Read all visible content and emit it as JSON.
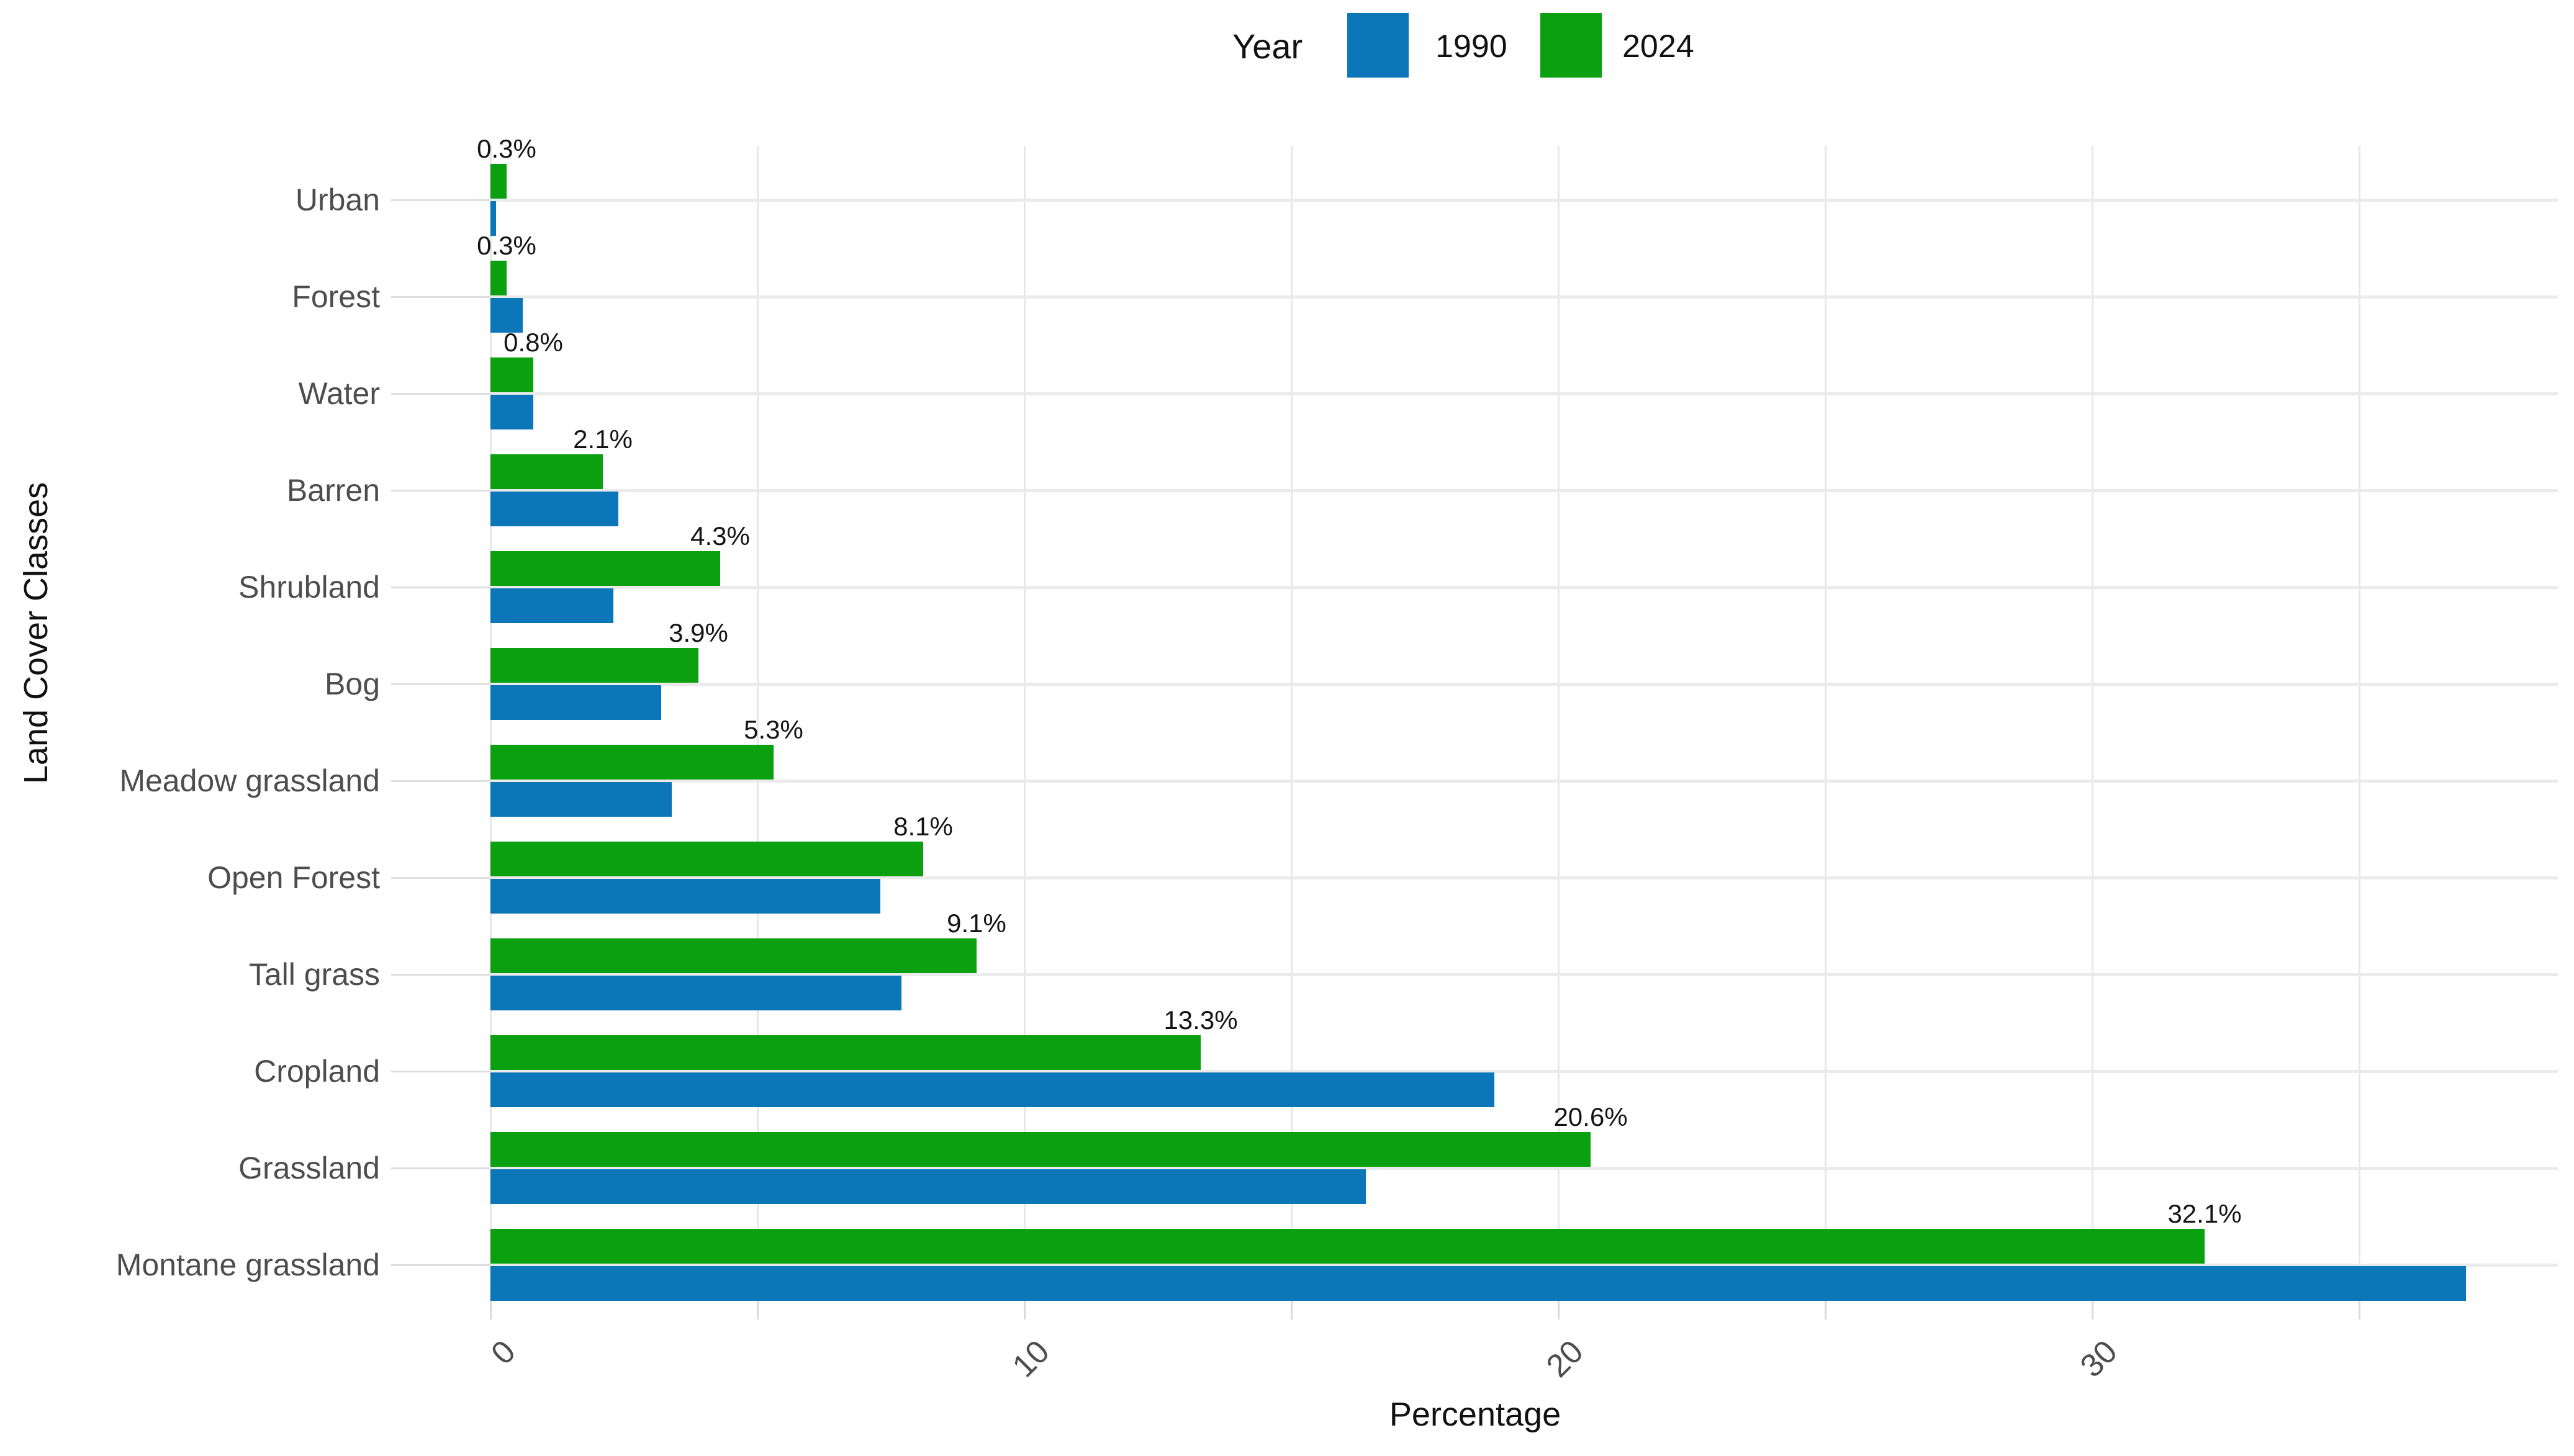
{
  "legend": {
    "title": "Year",
    "items": [
      {
        "label": "1990",
        "color": "#0b76b8"
      },
      {
        "label": "2024",
        "color": "#0aa00f"
      }
    ]
  },
  "axes": {
    "x_title": "Percentage",
    "y_title": "Land Cover Classes",
    "x_tick_labels": [
      {
        "value": 0,
        "label": "0"
      },
      {
        "value": 10,
        "label": "10"
      },
      {
        "value": 20,
        "label": "20"
      },
      {
        "value": 30,
        "label": "30"
      }
    ]
  },
  "chart_data": {
    "type": "bar",
    "orientation": "horizontal",
    "title": "",
    "xlabel": "Percentage",
    "ylabel": "Land Cover Classes",
    "xlim": [
      0,
      39
    ],
    "grid": true,
    "gridline_interval": 5,
    "legend_position": "top-center",
    "categories": [
      "Urban",
      "Forest",
      "Water",
      "Barren",
      "Shrubland",
      "Bog",
      "Meadow grassland",
      "Open Forest",
      "Tall grass",
      "Cropland",
      "Grassland",
      "Montane grassland"
    ],
    "series": [
      {
        "name": "1990",
        "color": "#0b76b8",
        "values": [
          0.1,
          0.6,
          0.8,
          2.4,
          2.3,
          3.2,
          3.4,
          7.3,
          7.7,
          18.8,
          16.4,
          37.0
        ],
        "labels_shown": false
      },
      {
        "name": "2024",
        "color": "#0aa00f",
        "values": [
          0.3,
          0.3,
          0.8,
          2.1,
          4.3,
          3.9,
          5.3,
          8.1,
          9.1,
          13.3,
          20.6,
          32.1
        ],
        "labels_shown": true,
        "labels": [
          "0.3%",
          "0.3%",
          "0.8%",
          "2.1%",
          "4.3%",
          "3.9%",
          "5.3%",
          "8.1%",
          "9.1%",
          "13.3%",
          "20.6%",
          "32.1%"
        ]
      }
    ]
  }
}
